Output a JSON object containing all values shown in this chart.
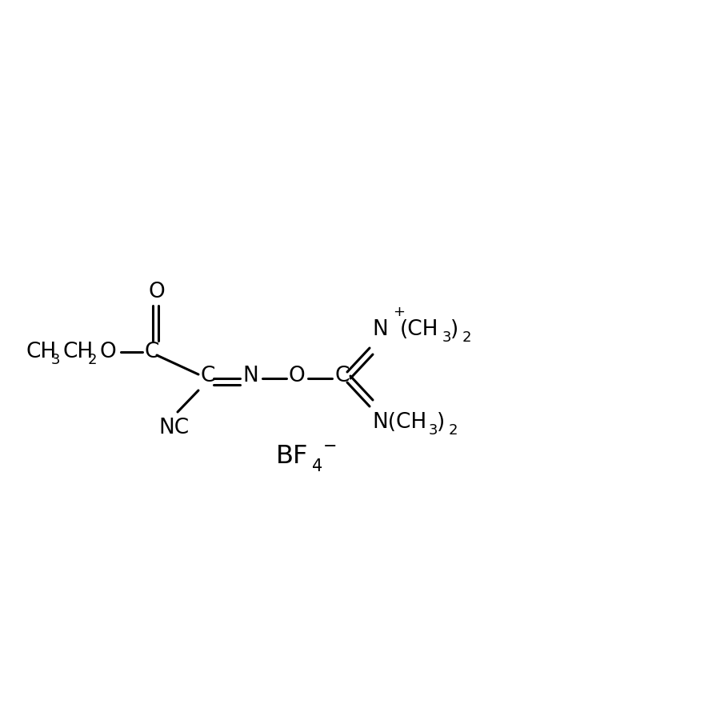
{
  "background_color": "#ffffff",
  "figsize": [
    8.9,
    8.9
  ],
  "dpi": 100,
  "xlim": [
    0,
    890
  ],
  "ylim": [
    0,
    890
  ],
  "main_y": 480,
  "bond_lw": 2.2,
  "font_size_main": 19,
  "font_size_sub": 13,
  "font_size_sup": 13,
  "font_size_bf4": 22,
  "bond_color": "#000000",
  "text_color": "#000000"
}
